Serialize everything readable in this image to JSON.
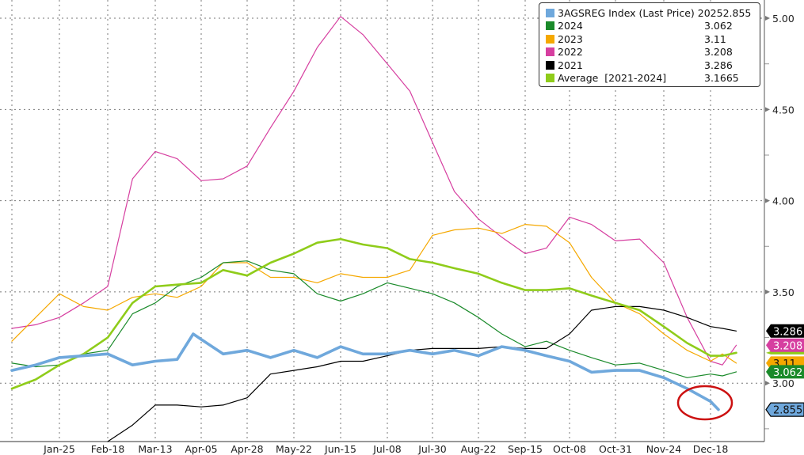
{
  "chart_data": {
    "type": "line",
    "x_tick_labels": [
      "Jan-25",
      "Feb-18",
      "Mar-13",
      "Apr-05",
      "Apr-28",
      "May-22",
      "Jun-15",
      "Jul-08",
      "Jul-30",
      "Aug-22",
      "Sep-15",
      "Oct-08",
      "Oct-31",
      "Nov-24",
      "Dec-18"
    ],
    "y_tick_labels": [
      "3.00",
      "3.50",
      "4.00",
      "4.50",
      "5.00"
    ],
    "y_ticks": [
      3.0,
      3.5,
      4.0,
      4.5,
      5.0
    ],
    "ylim": [
      2.68,
      5.1
    ],
    "y_axis_side": "right",
    "grid": true,
    "legend_placement": "top-right",
    "series": [
      {
        "name": "2022",
        "legend_label": "2022",
        "last": "3.208",
        "color": "#d63fa0",
        "width": 1.2,
        "points": [
          [
            "Jan-01",
            3.3
          ],
          [
            "Jan-13",
            3.32
          ],
          [
            "Jan-25",
            3.36
          ],
          [
            "Feb-06",
            3.44
          ],
          [
            "Feb-18",
            3.53
          ],
          [
            "Mar-02",
            4.12
          ],
          [
            "Mar-13",
            4.27
          ],
          [
            "Mar-24",
            4.23
          ],
          [
            "Apr-05",
            4.11
          ],
          [
            "Apr-16",
            4.12
          ],
          [
            "Apr-28",
            4.19
          ],
          [
            "May-10",
            4.4
          ],
          [
            "May-22",
            4.6
          ],
          [
            "Jun-03",
            4.84
          ],
          [
            "Jun-15",
            5.01
          ],
          [
            "Jun-26",
            4.91
          ],
          [
            "Jul-08",
            4.75
          ],
          [
            "Jul-19",
            4.6
          ],
          [
            "Jul-30",
            4.32
          ],
          [
            "Aug-10",
            4.05
          ],
          [
            "Aug-22",
            3.9
          ],
          [
            "Sep-03",
            3.8
          ],
          [
            "Sep-15",
            3.71
          ],
          [
            "Sep-26",
            3.74
          ],
          [
            "Oct-08",
            3.91
          ],
          [
            "Oct-19",
            3.87
          ],
          [
            "Oct-31",
            3.78
          ],
          [
            "Nov-12",
            3.79
          ],
          [
            "Nov-24",
            3.66
          ],
          [
            "Dec-06",
            3.36
          ],
          [
            "Dec-18",
            3.12
          ],
          [
            "Dec-24",
            3.1
          ],
          [
            "Dec-31",
            3.208
          ]
        ]
      },
      {
        "name": "2023",
        "legend_label": "2023",
        "last": "3.11",
        "color": "#f5a800",
        "width": 1.2,
        "points": [
          [
            "Jan-01",
            3.23
          ],
          [
            "Jan-13",
            3.36
          ],
          [
            "Jan-25",
            3.49
          ],
          [
            "Feb-06",
            3.42
          ],
          [
            "Feb-18",
            3.4
          ],
          [
            "Mar-02",
            3.47
          ],
          [
            "Mar-13",
            3.49
          ],
          [
            "Mar-24",
            3.47
          ],
          [
            "Apr-05",
            3.53
          ],
          [
            "Apr-16",
            3.66
          ],
          [
            "Apr-28",
            3.66
          ],
          [
            "May-10",
            3.58
          ],
          [
            "May-22",
            3.58
          ],
          [
            "Jun-03",
            3.55
          ],
          [
            "Jun-15",
            3.6
          ],
          [
            "Jun-26",
            3.58
          ],
          [
            "Jul-08",
            3.58
          ],
          [
            "Jul-19",
            3.62
          ],
          [
            "Jul-30",
            3.81
          ],
          [
            "Aug-10",
            3.84
          ],
          [
            "Aug-22",
            3.85
          ],
          [
            "Sep-03",
            3.82
          ],
          [
            "Sep-15",
            3.87
          ],
          [
            "Sep-26",
            3.86
          ],
          [
            "Oct-08",
            3.77
          ],
          [
            "Oct-19",
            3.58
          ],
          [
            "Oct-31",
            3.44
          ],
          [
            "Nov-12",
            3.38
          ],
          [
            "Nov-24",
            3.27
          ],
          [
            "Dec-06",
            3.18
          ],
          [
            "Dec-18",
            3.12
          ],
          [
            "Dec-24",
            3.16
          ],
          [
            "Dec-31",
            3.11
          ]
        ]
      },
      {
        "name": "2024",
        "legend_label": "2024",
        "last": "3.062",
        "color": "#1a8a2a",
        "width": 1.2,
        "points": [
          [
            "Jan-01",
            3.11
          ],
          [
            "Jan-13",
            3.09
          ],
          [
            "Jan-25",
            3.1
          ],
          [
            "Feb-06",
            3.16
          ],
          [
            "Feb-18",
            3.18
          ],
          [
            "Mar-02",
            3.38
          ],
          [
            "Mar-13",
            3.44
          ],
          [
            "Mar-24",
            3.53
          ],
          [
            "Apr-05",
            3.58
          ],
          [
            "Apr-16",
            3.66
          ],
          [
            "Apr-28",
            3.67
          ],
          [
            "May-10",
            3.62
          ],
          [
            "May-22",
            3.6
          ],
          [
            "Jun-03",
            3.49
          ],
          [
            "Jun-15",
            3.45
          ],
          [
            "Jun-26",
            3.49
          ],
          [
            "Jul-08",
            3.55
          ],
          [
            "Jul-19",
            3.52
          ],
          [
            "Jul-30",
            3.49
          ],
          [
            "Aug-10",
            3.44
          ],
          [
            "Aug-22",
            3.36
          ],
          [
            "Sep-03",
            3.27
          ],
          [
            "Sep-15",
            3.2
          ],
          [
            "Sep-26",
            3.23
          ],
          [
            "Oct-08",
            3.18
          ],
          [
            "Oct-19",
            3.14
          ],
          [
            "Oct-31",
            3.1
          ],
          [
            "Nov-12",
            3.11
          ],
          [
            "Nov-24",
            3.07
          ],
          [
            "Dec-06",
            3.03
          ],
          [
            "Dec-18",
            3.05
          ],
          [
            "Dec-24",
            3.04
          ],
          [
            "Dec-31",
            3.062
          ]
        ]
      },
      {
        "name": "2021",
        "legend_label": "2021",
        "last": "3.286",
        "color": "#000000",
        "width": 1.2,
        "points": [
          [
            "Feb-18",
            2.68
          ],
          [
            "Mar-02",
            2.77
          ],
          [
            "Mar-13",
            2.88
          ],
          [
            "Mar-24",
            2.88
          ],
          [
            "Apr-05",
            2.87
          ],
          [
            "Apr-16",
            2.88
          ],
          [
            "Apr-28",
            2.92
          ],
          [
            "May-10",
            3.05
          ],
          [
            "May-22",
            3.07
          ],
          [
            "Jun-03",
            3.09
          ],
          [
            "Jun-15",
            3.12
          ],
          [
            "Jun-26",
            3.12
          ],
          [
            "Jul-08",
            3.15
          ],
          [
            "Jul-19",
            3.18
          ],
          [
            "Jul-30",
            3.19
          ],
          [
            "Aug-10",
            3.19
          ],
          [
            "Aug-22",
            3.19
          ],
          [
            "Sep-03",
            3.2
          ],
          [
            "Sep-15",
            3.19
          ],
          [
            "Sep-26",
            3.19
          ],
          [
            "Oct-08",
            3.27
          ],
          [
            "Oct-19",
            3.4
          ],
          [
            "Oct-31",
            3.42
          ],
          [
            "Nov-12",
            3.42
          ],
          [
            "Nov-24",
            3.4
          ],
          [
            "Dec-06",
            3.36
          ],
          [
            "Dec-18",
            3.31
          ],
          [
            "Dec-24",
            3.3
          ],
          [
            "Dec-31",
            3.286
          ]
        ]
      },
      {
        "name": "Average",
        "legend_label": "Average  [2021-2024]",
        "last": "3.1665",
        "color": "#8fcc1a",
        "width": 2.6,
        "points": [
          [
            "Jan-01",
            2.97
          ],
          [
            "Jan-13",
            3.02
          ],
          [
            "Jan-25",
            3.1
          ],
          [
            "Feb-06",
            3.16
          ],
          [
            "Feb-18",
            3.25
          ],
          [
            "Mar-02",
            3.44
          ],
          [
            "Mar-13",
            3.53
          ],
          [
            "Mar-24",
            3.54
          ],
          [
            "Apr-05",
            3.55
          ],
          [
            "Apr-16",
            3.62
          ],
          [
            "Apr-28",
            3.59
          ],
          [
            "May-10",
            3.66
          ],
          [
            "May-22",
            3.71
          ],
          [
            "Jun-03",
            3.77
          ],
          [
            "Jun-15",
            3.79
          ],
          [
            "Jun-26",
            3.76
          ],
          [
            "Jul-08",
            3.74
          ],
          [
            "Jul-19",
            3.68
          ],
          [
            "Jul-30",
            3.66
          ],
          [
            "Aug-10",
            3.63
          ],
          [
            "Aug-22",
            3.6
          ],
          [
            "Sep-03",
            3.55
          ],
          [
            "Sep-15",
            3.51
          ],
          [
            "Sep-26",
            3.51
          ],
          [
            "Oct-08",
            3.52
          ],
          [
            "Oct-19",
            3.48
          ],
          [
            "Oct-31",
            3.44
          ],
          [
            "Nov-12",
            3.4
          ],
          [
            "Nov-24",
            3.31
          ],
          [
            "Dec-06",
            3.22
          ],
          [
            "Dec-18",
            3.15
          ],
          [
            "Dec-24",
            3.15
          ],
          [
            "Dec-31",
            3.1665
          ]
        ]
      },
      {
        "name": "3AGSREG Index (Last Price) 2025",
        "legend_label": "3AGSREG Index (Last Price) 2025",
        "last": "2.855",
        "color": "#6fa8dc",
        "width": 3.6,
        "points": [
          [
            "Jan-01",
            3.07
          ],
          [
            "Jan-13",
            3.1
          ],
          [
            "Jan-25",
            3.14
          ],
          [
            "Feb-06",
            3.15
          ],
          [
            "Feb-18",
            3.16
          ],
          [
            "Mar-02",
            3.1
          ],
          [
            "Mar-13",
            3.12
          ],
          [
            "Mar-24",
            3.13
          ],
          [
            "Apr-01",
            3.27
          ],
          [
            "Apr-05",
            3.24
          ],
          [
            "Apr-16",
            3.16
          ],
          [
            "Apr-28",
            3.18
          ],
          [
            "May-10",
            3.14
          ],
          [
            "May-22",
            3.18
          ],
          [
            "Jun-03",
            3.14
          ],
          [
            "Jun-15",
            3.2
          ],
          [
            "Jun-26",
            3.16
          ],
          [
            "Jul-08",
            3.16
          ],
          [
            "Jul-19",
            3.18
          ],
          [
            "Jul-30",
            3.16
          ],
          [
            "Aug-10",
            3.18
          ],
          [
            "Aug-22",
            3.15
          ],
          [
            "Sep-03",
            3.2
          ],
          [
            "Sep-15",
            3.18
          ],
          [
            "Sep-26",
            3.15
          ],
          [
            "Oct-08",
            3.12
          ],
          [
            "Oct-19",
            3.06
          ],
          [
            "Oct-31",
            3.07
          ],
          [
            "Nov-12",
            3.07
          ],
          [
            "Nov-24",
            3.03
          ],
          [
            "Dec-06",
            2.97
          ],
          [
            "Dec-18",
            2.9
          ],
          [
            "Dec-22",
            2.855
          ]
        ]
      }
    ],
    "annotation": {
      "type": "circle",
      "color": "#cc1111"
    }
  }
}
